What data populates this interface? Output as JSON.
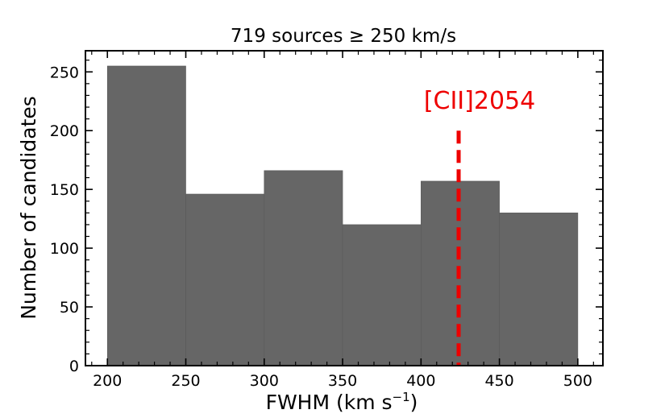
{
  "chart_data": {
    "type": "bar",
    "title": "719 sources ≥ 250 km/s",
    "xlabel_main": "FWHM (km s",
    "xlabel_sup": "−1",
    "xlabel_tail": ")",
    "ylabel": "Number of candidates",
    "bins": [
      {
        "x0": 200,
        "x1": 250,
        "count": 255
      },
      {
        "x0": 250,
        "x1": 300,
        "count": 146
      },
      {
        "x0": 300,
        "x1": 350,
        "count": 166
      },
      {
        "x0": 350,
        "x1": 400,
        "count": 120
      },
      {
        "x0": 400,
        "x1": 450,
        "count": 157
      },
      {
        "x0": 450,
        "x1": 500,
        "count": 130
      }
    ],
    "xlim": [
      186,
      516
    ],
    "ylim": [
      0,
      268
    ],
    "xticks": [
      200,
      250,
      300,
      350,
      400,
      450,
      500
    ],
    "yticks": [
      0,
      50,
      100,
      150,
      200,
      250
    ],
    "bar_color": "#666666",
    "annotation": {
      "label": "[CII]2054",
      "x": 424,
      "y_top": 200,
      "color": "#ee0000"
    },
    "grid": false
  }
}
